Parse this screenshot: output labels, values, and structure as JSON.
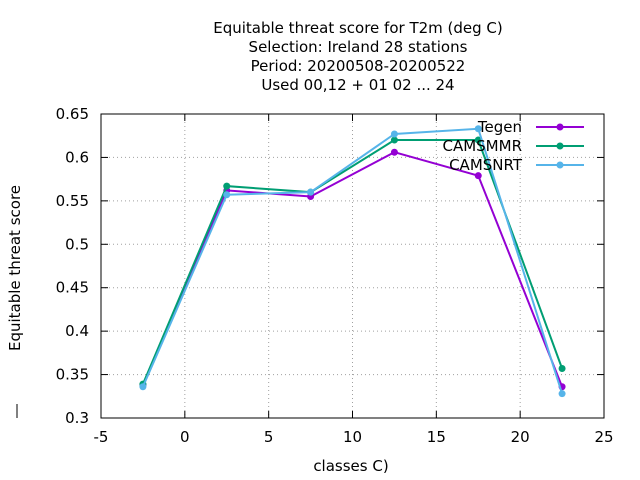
{
  "chart_data": {
    "type": "line",
    "title_lines": [
      "Equitable threat score  for T2m (deg C)",
      "Selection: Ireland     28 stations",
      "Period: 20200508-20200522",
      "Used  00,12  + 01 02 ... 24"
    ],
    "xlabel": "classes C)",
    "ylabel": "Equitable threat score",
    "xlim": [
      -5,
      25
    ],
    "ylim": [
      0.3,
      0.65
    ],
    "xticks": [
      -5,
      0,
      5,
      10,
      15,
      20,
      25
    ],
    "yticks": [
      0.3,
      0.35,
      0.4,
      0.45,
      0.5,
      0.55,
      0.6,
      0.65
    ],
    "grid": true,
    "legend_position": "top-right",
    "x": [
      -2.5,
      2.5,
      7.5,
      12.5,
      17.5,
      22.5
    ],
    "series": [
      {
        "name": "Tegen",
        "color": "#9400d3",
        "values": [
          0.338,
          0.562,
          0.555,
          0.606,
          0.579,
          0.336
        ]
      },
      {
        "name": "CAMSMMR",
        "color": "#009e73",
        "values": [
          0.339,
          0.567,
          0.56,
          0.62,
          0.62,
          0.357
        ]
      },
      {
        "name": "CAMSNRT",
        "color": "#56b4e9",
        "values": [
          0.336,
          0.557,
          0.56,
          0.627,
          0.633,
          0.328
        ]
      }
    ]
  }
}
